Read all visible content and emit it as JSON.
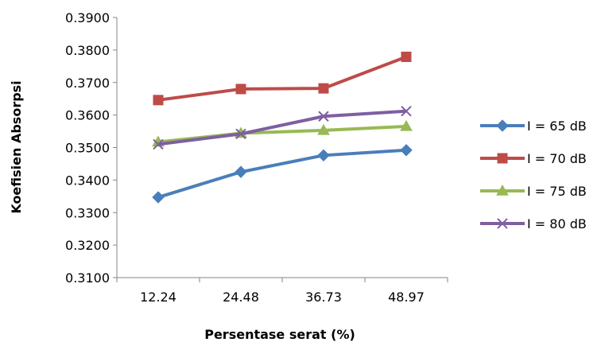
{
  "chart_data": {
    "type": "line",
    "title": "",
    "xlabel": "Persentase serat (%)",
    "ylabel": "Koefisien Absorpsi",
    "categories": [
      "12.24",
      "24.48",
      "36.73",
      "48.97"
    ],
    "y_ticks": [
      "0.3100",
      "0.3200",
      "0.3300",
      "0.3400",
      "0.3500",
      "0.3600",
      "0.3700",
      "0.3800",
      "0.3900"
    ],
    "ylim": [
      0.31,
      0.39
    ],
    "grid": false,
    "legend_position": "right",
    "series": [
      {
        "name": "I = 65 dB",
        "values": [
          0.3347,
          0.3425,
          0.3476,
          0.3492
        ],
        "color": "#4a7ebb",
        "marker": "diamond"
      },
      {
        "name": "I = 70 dB",
        "values": [
          0.3646,
          0.368,
          0.3682,
          0.3779
        ],
        "color": "#be4b48",
        "marker": "square"
      },
      {
        "name": "I = 75 dB",
        "values": [
          0.3517,
          0.3544,
          0.3553,
          0.3565
        ],
        "color": "#98b954",
        "marker": "triangle"
      },
      {
        "name": "I = 80 dB",
        "values": [
          0.351,
          0.3542,
          0.3596,
          0.3612
        ],
        "color": "#7e5fa0",
        "marker": "x"
      }
    ]
  }
}
